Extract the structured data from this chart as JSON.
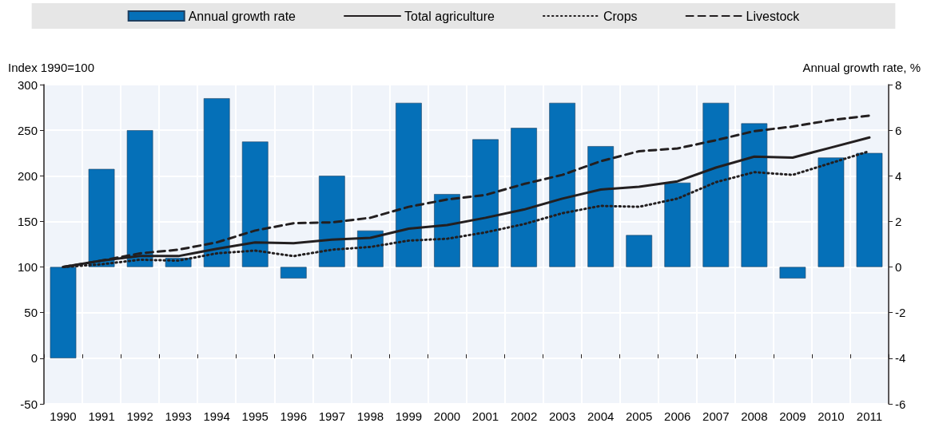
{
  "chart_data": {
    "type": "line",
    "ylabel": "Index 1990=100",
    "y2label": "Annual growth rate, %",
    "categories": [
      "1990",
      "1991",
      "1992",
      "1993",
      "1994",
      "1995",
      "1996",
      "1997",
      "1998",
      "1999",
      "2000",
      "2001",
      "2002",
      "2003",
      "2004",
      "2005",
      "2006",
      "2007",
      "2008",
      "2009",
      "2010",
      "2011"
    ],
    "series": [
      {
        "name": "Annual growth rate",
        "type": "bar",
        "axis": "y2",
        "color": "#0570b8",
        "values": [
          -4.0,
          4.3,
          6.0,
          0.4,
          7.4,
          5.5,
          -0.5,
          4.0,
          1.6,
          7.2,
          3.2,
          5.6,
          6.1,
          7.2,
          5.3,
          1.4,
          3.7,
          7.2,
          6.3,
          -0.5,
          4.8,
          5.0
        ]
      },
      {
        "name": "Total agriculture",
        "line_style": "solid",
        "color": "#231f20",
        "values": [
          100,
          107,
          112,
          112,
          120,
          127,
          126,
          130,
          132,
          142,
          146,
          154,
          163,
          175,
          185,
          188,
          194,
          209,
          221,
          220,
          231,
          242
        ]
      },
      {
        "name": "Crops",
        "line_style": "dotted",
        "color": "#231f20",
        "values": [
          100,
          103,
          108,
          107,
          115,
          118,
          112,
          119,
          122,
          129,
          131,
          138,
          147,
          159,
          167,
          166,
          175,
          193,
          204,
          201,
          214,
          227
        ]
      },
      {
        "name": "Livestock",
        "line_style": "dashed",
        "color": "#231f20",
        "values": [
          100,
          107,
          115,
          119,
          127,
          140,
          148,
          149,
          154,
          166,
          174,
          179,
          191,
          201,
          216,
          227,
          230,
          239,
          249,
          254,
          261,
          266
        ]
      }
    ],
    "ylim": [
      -50,
      300
    ],
    "yticks": [
      -50,
      0,
      50,
      100,
      150,
      200,
      250,
      300
    ],
    "y2lim": [
      -6,
      8
    ],
    "y2ticks": [
      -6,
      -4,
      -2,
      0,
      2,
      4,
      6,
      8
    ],
    "grid": true,
    "legend": "top",
    "marker": "none"
  }
}
